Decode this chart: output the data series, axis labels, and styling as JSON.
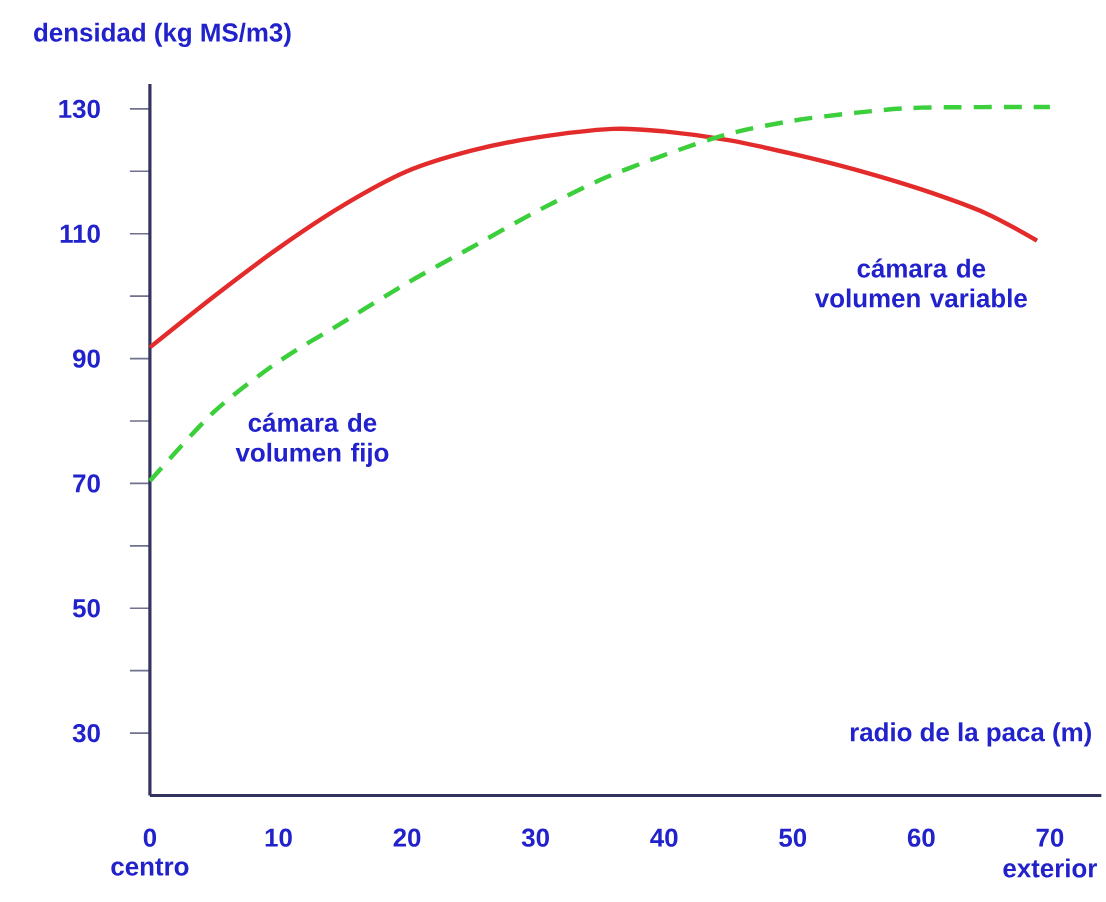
{
  "chart_data": {
    "type": "line",
    "xlabel": "radio de la paca (m)",
    "ylabel": "densidad (kg MS/m3)",
    "xlim": [
      0,
      74
    ],
    "ylim": [
      20,
      134
    ],
    "xticks": [
      0,
      10,
      20,
      30,
      40,
      50,
      60,
      70
    ],
    "yticks": [
      30,
      {
        "value": 40,
        "label": null
      },
      50,
      {
        "value": 60,
        "label": null
      },
      70,
      {
        "value": 80,
        "label": null
      },
      90,
      {
        "value": 100,
        "label": null
      },
      110,
      {
        "value": 120,
        "label": null
      },
      130
    ],
    "series": [
      {
        "name": "cámara de volumen variable",
        "color": "#e32b2b",
        "line_style": "solid",
        "x": [
          0,
          5,
          10,
          15,
          20,
          25,
          30,
          36,
          40,
          45,
          50,
          55,
          60,
          65,
          69
        ],
        "values": [
          91.8,
          100,
          107.7,
          114.5,
          120,
          123.3,
          125.4,
          126.8,
          126.4,
          125,
          122.8,
          120.2,
          117.1,
          113.3,
          108.9
        ]
      },
      {
        "name": "cámara de volumen fijo",
        "color": "#3ccf3c",
        "line_style": "dashed",
        "x": [
          0,
          5,
          10,
          15,
          20,
          25,
          30,
          35,
          40,
          45,
          50,
          55,
          60,
          70
        ],
        "values": [
          70.4,
          81.5,
          89.5,
          95.8,
          102.1,
          107.8,
          113.5,
          118.6,
          122.6,
          126,
          128.1,
          129.4,
          130.2,
          130.3
        ]
      }
    ],
    "annotations": [
      "centro",
      "exterior"
    ],
    "grid": false,
    "legend": false,
    "marker": "none"
  }
}
